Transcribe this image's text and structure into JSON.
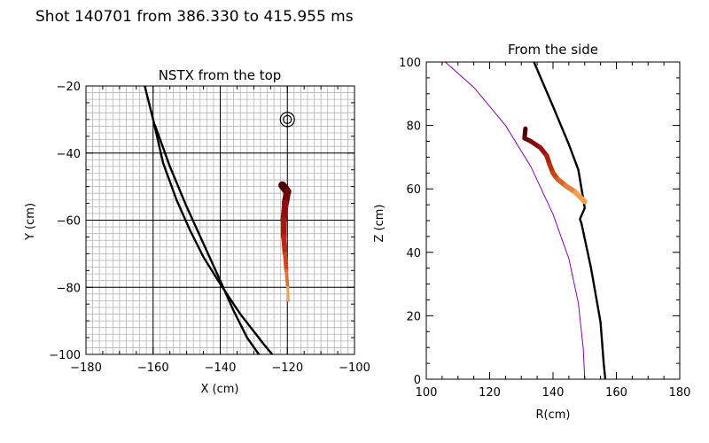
{
  "title": "Shot 140701 from 386.330 to 415.955 ms",
  "chart_data": [
    {
      "type": "line",
      "title": "NSTX from the top",
      "xlabel": "X (cm)",
      "ylabel": "Y (cm)",
      "xlim": [
        -180,
        -100
      ],
      "ylim": [
        -100,
        -20
      ],
      "grid": true,
      "minor_grid_step": 2,
      "xticks": [
        -180,
        -160,
        -140,
        -120,
        -100
      ],
      "yticks": [
        -100,
        -80,
        -60,
        -40,
        -20
      ],
      "marker": {
        "name": "target-marker",
        "x": -120,
        "y": -30
      },
      "series": [
        {
          "name": "boundary-1",
          "color": "#000000",
          "x": [
            -162.5,
            -160,
            -157,
            -153,
            -149,
            -145,
            -140,
            -134,
            -127,
            -124.5
          ],
          "y": [
            -20,
            -30,
            -43,
            -54,
            -63,
            -71,
            -79,
            -88,
            -97,
            -100
          ]
        },
        {
          "name": "boundary-2",
          "color": "#000000",
          "x": [
            -159.5,
            -155,
            -150,
            -145,
            -140,
            -136,
            -132,
            -128.5
          ],
          "y": [
            -31.5,
            -44,
            -56,
            -67,
            -78,
            -87,
            -95,
            -100
          ]
        },
        {
          "name": "trajectory",
          "gradient": [
            "#4b0000",
            "#9a1010",
            "#cc3311",
            "#f0a050"
          ],
          "x": [
            -121.5,
            -120,
            -120.6,
            -121.1,
            -121.1,
            -120.7,
            -120.3,
            -119.9,
            -119.7
          ],
          "y": [
            -49.6,
            -51.5,
            -55,
            -60,
            -65,
            -70,
            -75,
            -80,
            -84
          ]
        }
      ]
    },
    {
      "type": "line",
      "title": "From the side",
      "xlabel": "R(cm)",
      "ylabel": "Z (cm)",
      "xlim": [
        100,
        180
      ],
      "ylim": [
        0,
        100
      ],
      "grid": false,
      "xticks": [
        100,
        120,
        140,
        160,
        180
      ],
      "yticks": [
        0,
        20,
        40,
        60,
        80,
        100
      ],
      "series": [
        {
          "name": "inner-boundary",
          "color": "#8800aa",
          "x": [
            106,
            115,
            125,
            133,
            140,
            145,
            148,
            149.5,
            150
          ],
          "y": [
            100,
            92,
            80,
            67,
            52,
            38,
            24,
            10,
            0
          ]
        },
        {
          "name": "outer-boundary",
          "color": "#000000",
          "x": [
            134,
            140,
            145,
            148,
            150,
            148.5,
            149,
            152,
            155,
            156,
            156.5
          ],
          "y": [
            100,
            86,
            74,
            66,
            54,
            50.5,
            49,
            35,
            18,
            5,
            0
          ]
        },
        {
          "name": "trajectory",
          "gradient": [
            "#4b0000",
            "#9a1010",
            "#cc4411",
            "#f0a050"
          ],
          "x": [
            131.3,
            131,
            133,
            136,
            138,
            139,
            140,
            141.5,
            144,
            147,
            150
          ],
          "y": [
            79,
            76,
            75,
            73,
            70.5,
            67.5,
            65,
            63,
            61,
            59,
            56
          ]
        }
      ]
    }
  ]
}
